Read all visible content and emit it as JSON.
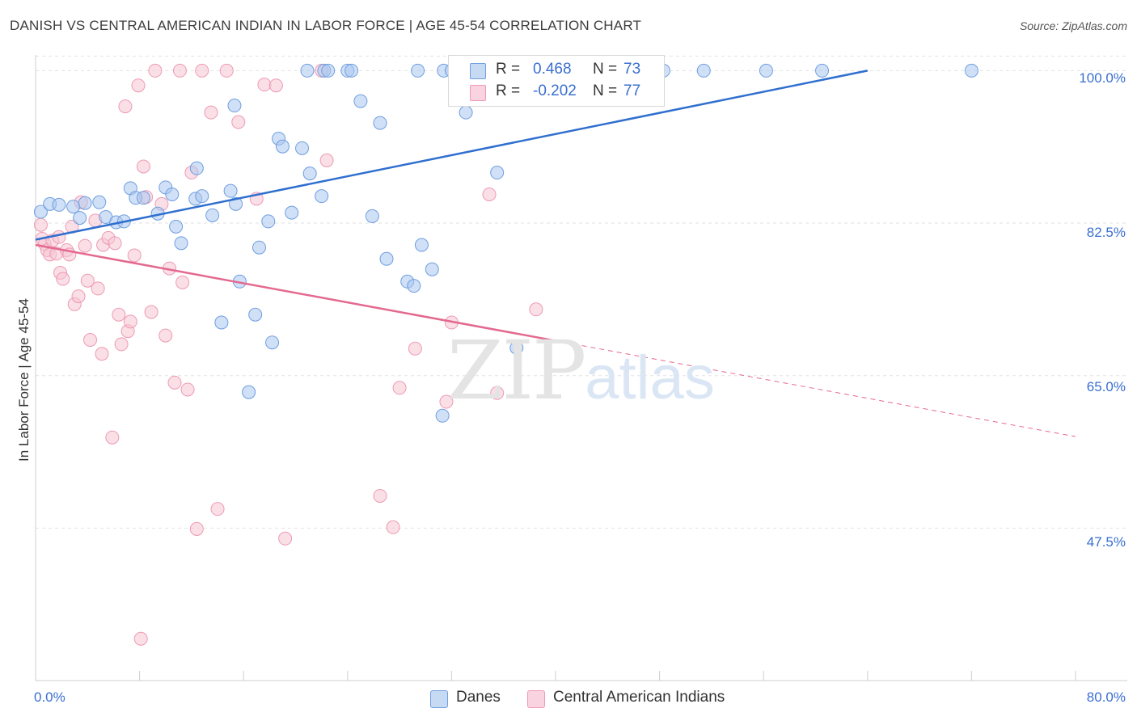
{
  "header": {
    "title": "DANISH VS CENTRAL AMERICAN INDIAN IN LABOR FORCE | AGE 45-54 CORRELATION CHART",
    "source": "Source: ZipAtlas.com"
  },
  "watermark": {
    "zip": "ZIP",
    "atlas": "atlas"
  },
  "legend": {
    "r_label": "R =",
    "n_label": "N =",
    "danes": {
      "r": "0.468",
      "n": "73"
    },
    "cai": {
      "r": "-0.202",
      "n": "77"
    }
  },
  "bottom_legend": {
    "danes": "Danes",
    "cai": "Central American Indians"
  },
  "colors": {
    "danes_fill": "#a9c7ee",
    "danes_stroke": "#6f9ee0",
    "danes_line": "#2f6fcf",
    "cai_fill": "#f6c4d3",
    "cai_stroke": "#ee9ab4",
    "cai_line": "#e4698f",
    "tick_label": "#3a6fd0",
    "grid": "#e2e2e2"
  },
  "chart_data": {
    "type": "scatter",
    "title": "DANISH VS CENTRAL AMERICAN INDIAN IN LABOR FORCE | AGE 45-54 CORRELATION CHART",
    "xlabel": "",
    "ylabel": "In Labor Force | Age 45-54",
    "xlim": [
      0,
      80
    ],
    "ylim": [
      30,
      101.8
    ],
    "x_tick_labels": [
      "0.0%",
      "80.0%"
    ],
    "y_ticks": [
      47.5,
      65.0,
      82.5,
      100.0
    ],
    "y_tick_labels": [
      "47.5%",
      "65.0%",
      "82.5%",
      "100.0%"
    ],
    "grid": true,
    "legend_position": "top-center",
    "series": [
      {
        "name": "Danes",
        "r": 0.468,
        "n": 73,
        "trend": {
          "x0": 0,
          "y0": 80.6,
          "x1": 64,
          "y1": 100
        },
        "points": [
          [
            0.4,
            83.8
          ],
          [
            1.1,
            84.7
          ],
          [
            1.8,
            84.6
          ],
          [
            2.9,
            84.4
          ],
          [
            3.8,
            84.8
          ],
          [
            4.9,
            84.9
          ],
          [
            5.4,
            83.2
          ],
          [
            6.2,
            82.6
          ],
          [
            6.8,
            82.7
          ],
          [
            3.4,
            83.1
          ],
          [
            7.3,
            86.5
          ],
          [
            7.7,
            85.4
          ],
          [
            8.3,
            85.4
          ],
          [
            9.4,
            83.6
          ],
          [
            10.0,
            86.6
          ],
          [
            10.5,
            85.8
          ],
          [
            10.8,
            82.1
          ],
          [
            11.2,
            80.2
          ],
          [
            12.4,
            88.8
          ],
          [
            12.3,
            85.3
          ],
          [
            12.8,
            85.6
          ],
          [
            13.6,
            83.4
          ],
          [
            14.3,
            71.1
          ],
          [
            15.0,
            86.2
          ],
          [
            15.3,
            96.0
          ],
          [
            15.4,
            84.7
          ],
          [
            15.7,
            75.8
          ],
          [
            16.4,
            63.1
          ],
          [
            16.9,
            72.0
          ],
          [
            17.2,
            79.7
          ],
          [
            17.9,
            82.7
          ],
          [
            18.2,
            68.8
          ],
          [
            18.7,
            92.2
          ],
          [
            19.0,
            91.3
          ],
          [
            19.7,
            83.7
          ],
          [
            20.5,
            91.1
          ],
          [
            21.1,
            88.2
          ],
          [
            22.0,
            85.6
          ],
          [
            20.9,
            100.0
          ],
          [
            22.2,
            100.0
          ],
          [
            22.5,
            100.0
          ],
          [
            24.0,
            100.0
          ],
          [
            24.3,
            100.0
          ],
          [
            25.0,
            96.5
          ],
          [
            25.9,
            83.3
          ],
          [
            26.5,
            94.0
          ],
          [
            27.0,
            78.4
          ],
          [
            28.6,
            75.8
          ],
          [
            29.1,
            75.3
          ],
          [
            29.7,
            80.0
          ],
          [
            29.4,
            100.0
          ],
          [
            30.5,
            77.2
          ],
          [
            31.3,
            60.4
          ],
          [
            31.4,
            100.0
          ],
          [
            32.0,
            100.0
          ],
          [
            33.1,
            95.2
          ],
          [
            34.0,
            100.0
          ],
          [
            35.5,
            88.3
          ],
          [
            37.0,
            68.2
          ],
          [
            39.6,
            100.0
          ],
          [
            43.0,
            100.0
          ],
          [
            46.0,
            100.0
          ],
          [
            48.3,
            100.0
          ],
          [
            51.4,
            100.0
          ],
          [
            56.2,
            100.0
          ],
          [
            60.5,
            100.0
          ],
          [
            72.0,
            100.0
          ]
        ]
      },
      {
        "name": "Central American Indians",
        "r": -0.202,
        "n": 77,
        "trend": {
          "x0": 0,
          "y0": 80.0,
          "x1": 40,
          "y1": 69.0,
          "dash_x1": 80,
          "dash_y1": 58.0
        },
        "points": [
          [
            0.4,
            82.3
          ],
          [
            0.5,
            80.7
          ],
          [
            0.7,
            80.1
          ],
          [
            0.9,
            79.4
          ],
          [
            1.1,
            78.9
          ],
          [
            1.3,
            80.5
          ],
          [
            1.6,
            79.0
          ],
          [
            1.8,
            80.9
          ],
          [
            1.9,
            76.8
          ],
          [
            2.1,
            76.1
          ],
          [
            2.4,
            79.4
          ],
          [
            2.6,
            78.9
          ],
          [
            2.8,
            82.1
          ],
          [
            3.0,
            73.2
          ],
          [
            3.3,
            74.1
          ],
          [
            3.5,
            84.9
          ],
          [
            3.8,
            79.9
          ],
          [
            4.0,
            75.9
          ],
          [
            4.2,
            69.1
          ],
          [
            4.6,
            82.8
          ],
          [
            4.8,
            75.0
          ],
          [
            5.1,
            67.5
          ],
          [
            5.2,
            80.0
          ],
          [
            5.6,
            80.8
          ],
          [
            5.9,
            57.9
          ],
          [
            6.1,
            80.2
          ],
          [
            6.4,
            72.0
          ],
          [
            6.6,
            68.6
          ],
          [
            6.9,
            95.9
          ],
          [
            7.1,
            70.1
          ],
          [
            7.3,
            71.2
          ],
          [
            7.6,
            78.8
          ],
          [
            7.9,
            98.3
          ],
          [
            8.1,
            34.8
          ],
          [
            8.3,
            89.0
          ],
          [
            8.5,
            85.5
          ],
          [
            8.9,
            72.3
          ],
          [
            9.2,
            100.0
          ],
          [
            9.7,
            84.7
          ],
          [
            10.0,
            69.6
          ],
          [
            10.3,
            77.3
          ],
          [
            10.7,
            64.2
          ],
          [
            11.1,
            100.0
          ],
          [
            11.3,
            75.7
          ],
          [
            11.7,
            63.4
          ],
          [
            12.0,
            88.3
          ],
          [
            12.4,
            47.4
          ],
          [
            12.8,
            100.0
          ],
          [
            13.5,
            95.2
          ],
          [
            14.0,
            49.7
          ],
          [
            14.7,
            100.0
          ],
          [
            15.6,
            94.1
          ],
          [
            17.0,
            85.3
          ],
          [
            17.6,
            98.4
          ],
          [
            18.5,
            98.3
          ],
          [
            19.2,
            46.3
          ],
          [
            22.0,
            100.0
          ],
          [
            22.4,
            89.7
          ],
          [
            26.5,
            51.2
          ],
          [
            27.5,
            47.6
          ],
          [
            28.0,
            63.6
          ],
          [
            29.2,
            68.1
          ],
          [
            31.6,
            62.0
          ],
          [
            32.0,
            71.1
          ],
          [
            34.9,
            85.8
          ],
          [
            35.5,
            63.0
          ],
          [
            38.5,
            72.6
          ]
        ]
      }
    ]
  }
}
